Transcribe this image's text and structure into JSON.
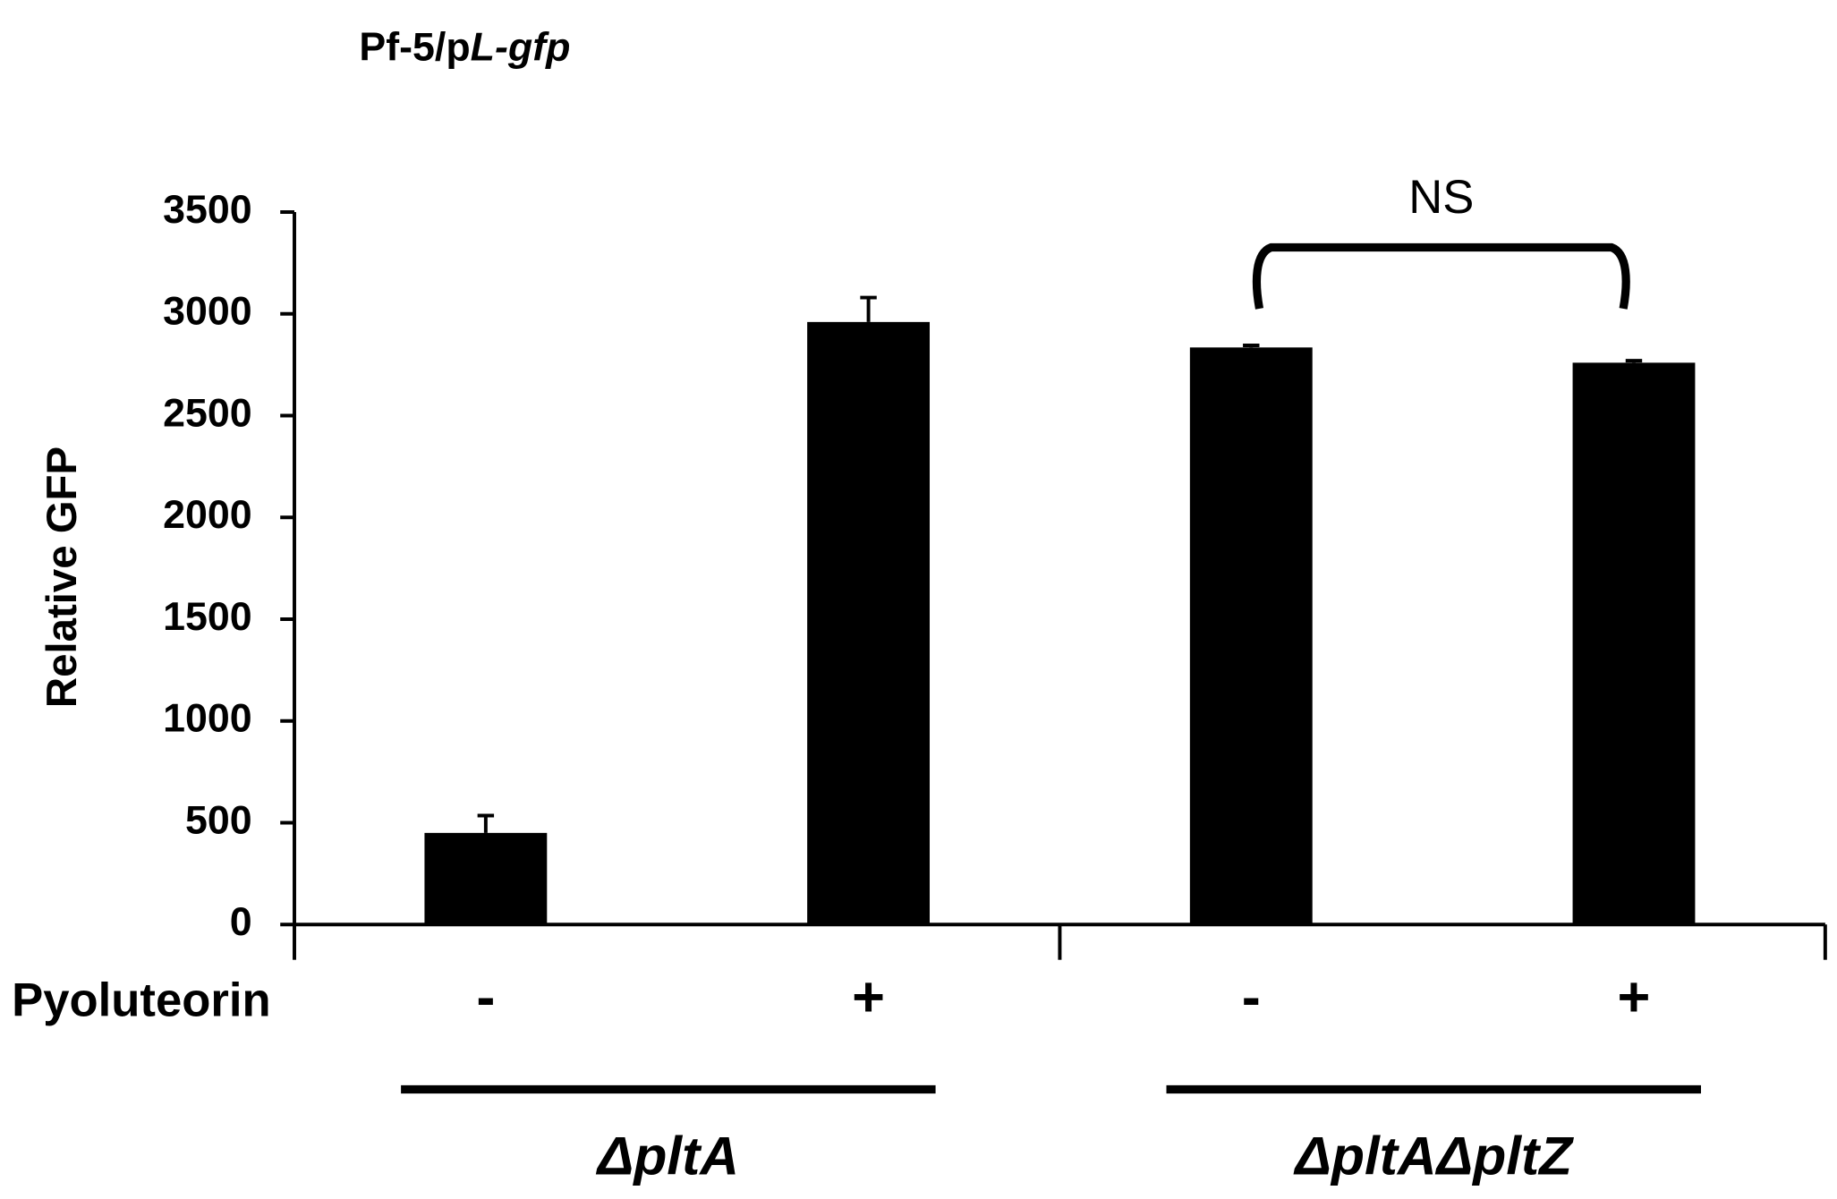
{
  "chart_data": {
    "type": "bar",
    "title_parts": [
      {
        "text": "Pf-5/p"
      },
      {
        "text": "L-gfp",
        "italic": true
      }
    ],
    "y_label": "Relative GFP",
    "row_label": "Pyoluteorin",
    "categories": [
      "-",
      "+",
      "-",
      "+"
    ],
    "values": [
      450,
      2960,
      2835,
      2760
    ],
    "errors": [
      85,
      120,
      10,
      10
    ],
    "color": "#000000",
    "groups": [
      {
        "label": "ΔpltA"
      },
      {
        "label": "ΔpltAΔpltZ"
      }
    ],
    "annotation": "NS",
    "ylim": [
      0,
      3500
    ],
    "yticks": [
      0,
      500,
      1000,
      1500,
      2000,
      2500,
      3000,
      3500
    ],
    "grid": false
  }
}
